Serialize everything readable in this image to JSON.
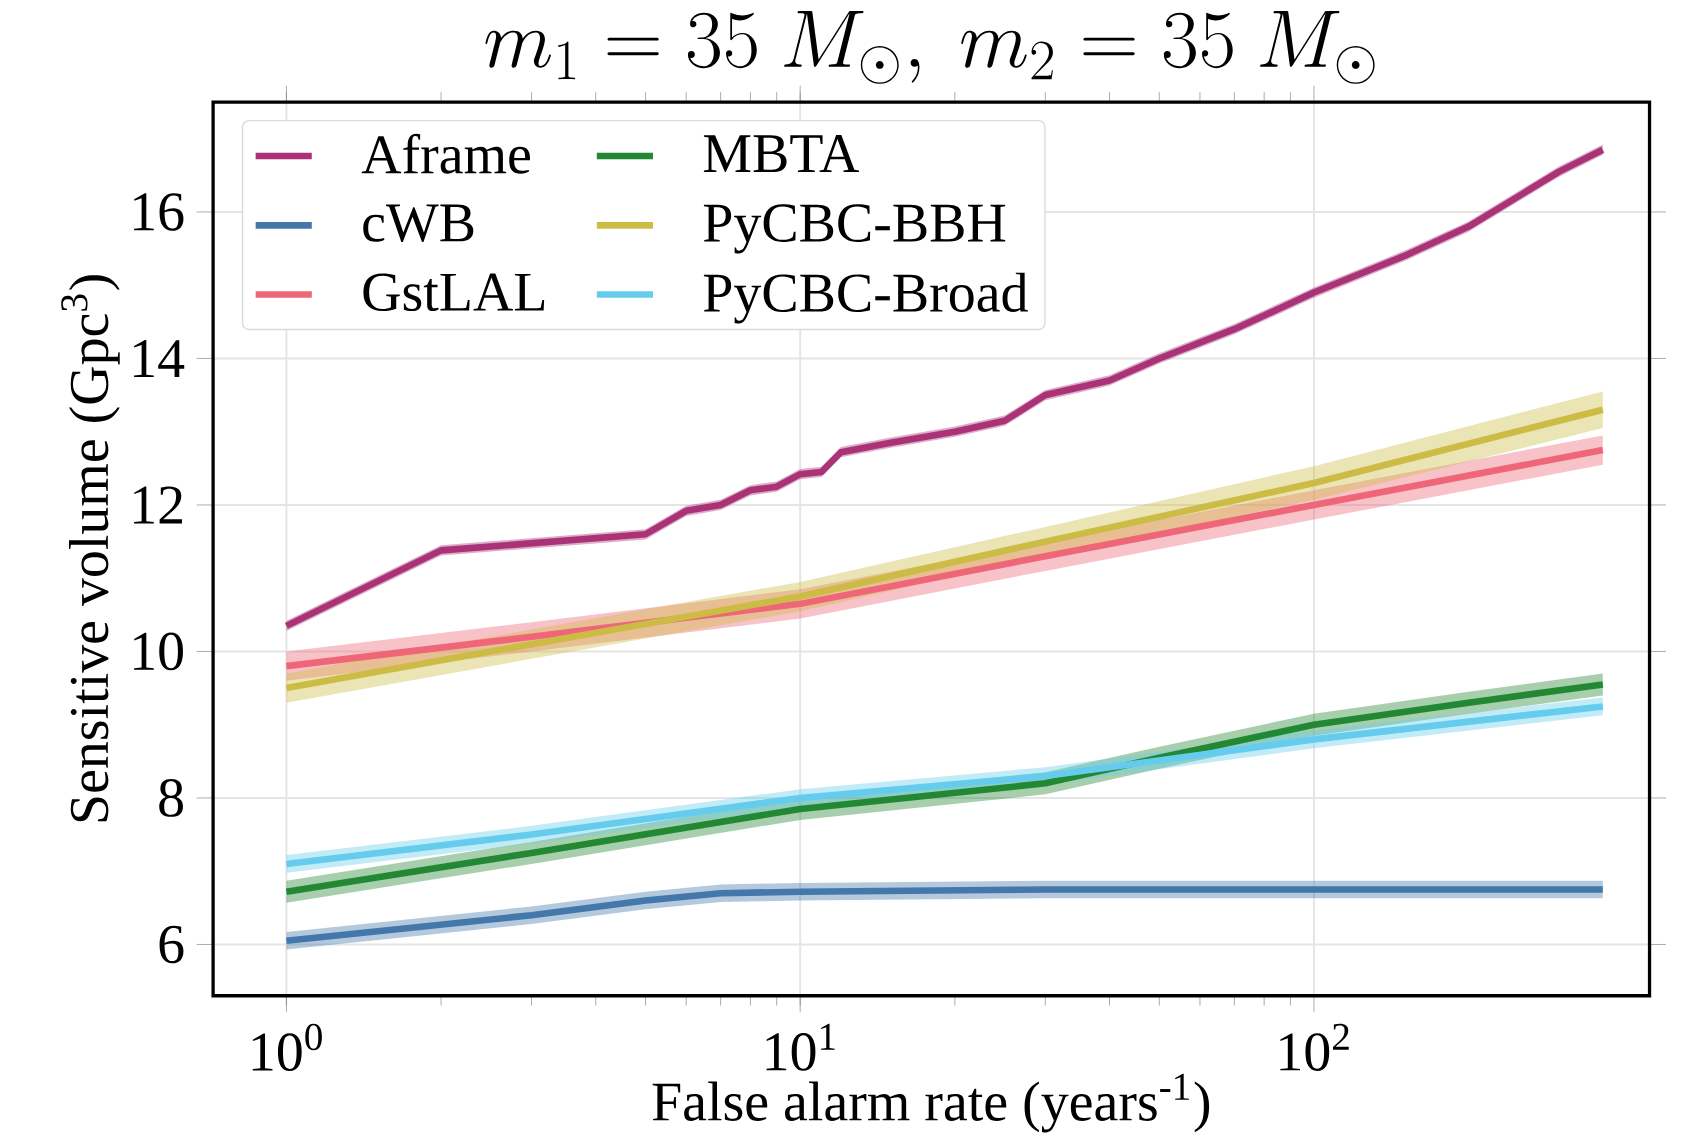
{
  "chart_data": {
    "type": "line",
    "title": "m_1 = 35~M_\\odot,\\ m_2 = 35~M_\\odot",
    "xlabel": "False alarm rate (years$^{-1}$)",
    "ylabel": "Sensitive volume (Gpc$^{3}$)",
    "log": "x",
    "xlim": [
      0.72,
      450
    ],
    "ylim": [
      5.3,
      17.5
    ],
    "xticks": [
      {
        "value": 1,
        "label": "10$^{0}$"
      },
      {
        "value": 10,
        "label": "10$^{1}$"
      },
      {
        "value": 100,
        "label": "10$^{2}$"
      }
    ],
    "yticks": [
      6,
      8,
      10,
      12,
      14,
      16
    ],
    "grid": true,
    "legend": "top left",
    "line_style": "solid",
    "marker": "none",
    "series": [
      {
        "name": "Aframe",
        "color": "#aa3377",
        "x": [
          1,
          2,
          5,
          6,
          7,
          8,
          9,
          10,
          11,
          12,
          15,
          20,
          25,
          30,
          40,
          50,
          70,
          100,
          150,
          200,
          300,
          365
        ],
        "values": [
          10.35,
          11.38,
          11.6,
          11.92,
          12.0,
          12.2,
          12.25,
          12.42,
          12.45,
          12.72,
          12.85,
          13.0,
          13.15,
          13.5,
          13.7,
          14.0,
          14.4,
          14.9,
          15.4,
          15.8,
          16.55,
          16.85
        ],
        "lower": [
          10.28,
          11.31,
          11.53,
          11.85,
          11.93,
          12.13,
          12.18,
          12.35,
          12.38,
          12.65,
          12.78,
          12.93,
          13.08,
          13.43,
          13.63,
          13.93,
          14.33,
          14.83,
          15.33,
          15.73,
          16.48,
          16.78
        ],
        "upper": [
          10.42,
          11.45,
          11.67,
          11.99,
          12.07,
          12.27,
          12.32,
          12.49,
          12.52,
          12.79,
          12.92,
          13.07,
          13.22,
          13.57,
          13.77,
          14.07,
          14.47,
          14.97,
          15.47,
          15.87,
          16.62,
          16.92
        ]
      },
      {
        "name": "cWB",
        "color": "#4477aa",
        "x": [
          1,
          3,
          5,
          7,
          10,
          30,
          365
        ],
        "values": [
          6.05,
          6.4,
          6.6,
          6.7,
          6.72,
          6.75,
          6.75
        ],
        "lower": [
          5.93,
          6.28,
          6.48,
          6.58,
          6.6,
          6.63,
          6.63
        ],
        "upper": [
          6.17,
          6.52,
          6.72,
          6.82,
          6.84,
          6.87,
          6.87
        ]
      },
      {
        "name": "GstLAL",
        "color": "#ee6677",
        "x": [
          1,
          3,
          10,
          30,
          100,
          365
        ],
        "values": [
          9.8,
          10.2,
          10.65,
          11.3,
          12.0,
          12.75
        ],
        "lower": [
          9.6,
          10.0,
          10.45,
          11.1,
          11.8,
          12.55
        ],
        "upper": [
          10.0,
          10.4,
          10.85,
          11.5,
          12.2,
          12.95
        ]
      },
      {
        "name": "MBTA",
        "color": "#228833",
        "x": [
          1,
          3,
          10,
          30,
          50,
          100,
          200,
          365
        ],
        "values": [
          6.72,
          7.25,
          7.85,
          8.2,
          8.55,
          9.0,
          9.3,
          9.55
        ],
        "lower": [
          6.57,
          7.1,
          7.7,
          8.05,
          8.4,
          8.85,
          9.15,
          9.4
        ],
        "upper": [
          6.87,
          7.4,
          8.0,
          8.35,
          8.7,
          9.15,
          9.45,
          9.7
        ]
      },
      {
        "name": "PyCBC-BBH",
        "color": "#ccbb44",
        "x": [
          1,
          3,
          10,
          30,
          100,
          365
        ],
        "values": [
          9.5,
          10.1,
          10.75,
          11.5,
          12.3,
          13.3
        ],
        "lower": [
          9.3,
          9.9,
          10.55,
          11.3,
          12.07,
          13.05
        ],
        "upper": [
          9.7,
          10.3,
          10.95,
          11.7,
          12.53,
          13.55
        ]
      },
      {
        "name": "PyCBC-Broad",
        "color": "#66ccee",
        "x": [
          1,
          3,
          10,
          30,
          100,
          365
        ],
        "values": [
          7.1,
          7.5,
          8.0,
          8.3,
          8.8,
          9.25
        ],
        "lower": [
          6.98,
          7.38,
          7.88,
          8.18,
          8.68,
          9.13
        ],
        "upper": [
          7.22,
          7.62,
          8.12,
          8.42,
          8.92,
          9.37
        ]
      }
    ]
  }
}
